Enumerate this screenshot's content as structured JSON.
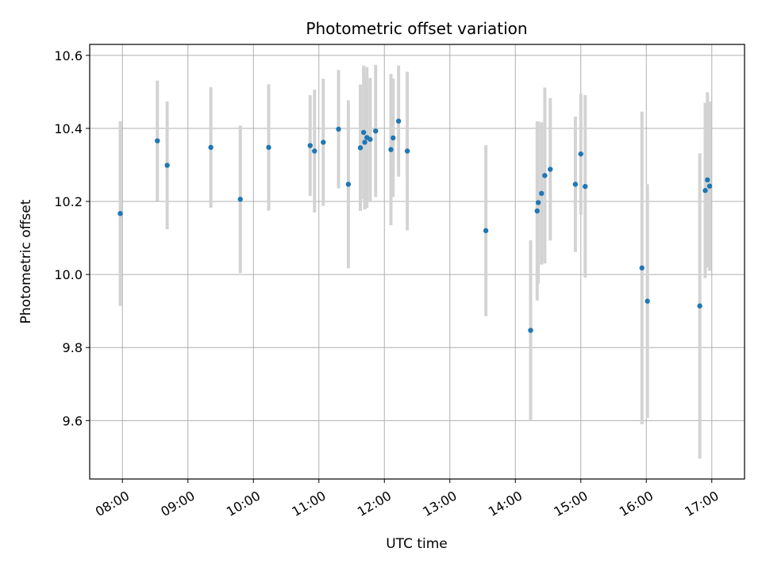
{
  "chart_data": {
    "type": "scatter",
    "title": "Photometric offset variation",
    "xlabel": "UTC time",
    "ylabel": "Photometric offset",
    "x_ticks": [
      "08:00",
      "09:00",
      "10:00",
      "11:00",
      "12:00",
      "13:00",
      "14:00",
      "15:00",
      "16:00",
      "17:00"
    ],
    "y_ticks": [
      "9.6",
      "9.8",
      "10.0",
      "10.2",
      "10.4",
      "10.6"
    ],
    "xlim": [
      "07:30",
      "17:30"
    ],
    "ylim": [
      9.44,
      10.63
    ],
    "grid": true,
    "colors": {
      "point": "#1f77b4",
      "errorbar": "#d3d3d3",
      "grid": "#b0b0b0"
    },
    "points": [
      {
        "x": "07:58",
        "y": 10.167,
        "err": 0.253
      },
      {
        "x": "08:32",
        "y": 10.366,
        "err": 0.165
      },
      {
        "x": "08:41",
        "y": 10.299,
        "err": 0.175
      },
      {
        "x": "09:21",
        "y": 10.348,
        "err": 0.165
      },
      {
        "x": "09:48",
        "y": 10.206,
        "err": 0.202
      },
      {
        "x": "10:14",
        "y": 10.348,
        "err": 0.173
      },
      {
        "x": "10:52",
        "y": 10.353,
        "err": 0.138
      },
      {
        "x": "10:56",
        "y": 10.338,
        "err": 0.168
      },
      {
        "x": "11:04",
        "y": 10.362,
        "err": 0.174
      },
      {
        "x": "11:18",
        "y": 10.398,
        "err": 0.162
      },
      {
        "x": "11:27",
        "y": 10.247,
        "err": 0.23
      },
      {
        "x": "11:38",
        "y": 10.347,
        "err": 0.173
      },
      {
        "x": "11:41",
        "y": 10.389,
        "err": 0.183
      },
      {
        "x": "11:42",
        "y": 10.362,
        "err": 0.184
      },
      {
        "x": "11:44",
        "y": 10.375,
        "err": 0.193
      },
      {
        "x": "11:47",
        "y": 10.37,
        "err": 0.168
      },
      {
        "x": "11:52",
        "y": 10.393,
        "err": 0.181
      },
      {
        "x": "12:06",
        "y": 10.342,
        "err": 0.207
      },
      {
        "x": "12:08",
        "y": 10.374,
        "err": 0.162
      },
      {
        "x": "12:13",
        "y": 10.42,
        "err": 0.152
      },
      {
        "x": "12:21",
        "y": 10.338,
        "err": 0.217
      },
      {
        "x": "13:33",
        "y": 10.12,
        "err": 0.234
      },
      {
        "x": "14:14",
        "y": 9.847,
        "err": 0.247
      },
      {
        "x": "14:20",
        "y": 10.174,
        "err": 0.245
      },
      {
        "x": "14:21",
        "y": 10.197,
        "err": 0.222
      },
      {
        "x": "14:24",
        "y": 10.222,
        "err": 0.195
      },
      {
        "x": "14:27",
        "y": 10.271,
        "err": 0.241
      },
      {
        "x": "14:32",
        "y": 10.288,
        "err": 0.195
      },
      {
        "x": "14:55",
        "y": 10.247,
        "err": 0.185
      },
      {
        "x": "15:00",
        "y": 10.33,
        "err": 0.166
      },
      {
        "x": "15:04",
        "y": 10.241,
        "err": 0.25
      },
      {
        "x": "15:56",
        "y": 10.018,
        "err": 0.428
      },
      {
        "x": "16:01",
        "y": 9.927,
        "err": 0.32
      },
      {
        "x": "16:49",
        "y": 9.914,
        "err": 0.418
      },
      {
        "x": "16:54",
        "y": 10.23,
        "err": 0.24
      },
      {
        "x": "16:56",
        "y": 10.259,
        "err": 0.24
      },
      {
        "x": "16:58",
        "y": 10.242,
        "err": 0.232
      }
    ]
  }
}
